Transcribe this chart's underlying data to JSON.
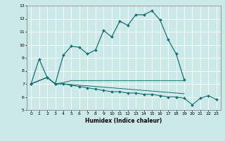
{
  "title": "",
  "xlabel": "Humidex (Indice chaleur)",
  "background_color": "#cce9e9",
  "grid_color": "#ffffff",
  "line_color": "#1a7070",
  "xlim": [
    -0.5,
    23.5
  ],
  "ylim": [
    5,
    13
  ],
  "xticks": [
    0,
    1,
    2,
    3,
    4,
    5,
    6,
    7,
    8,
    9,
    10,
    11,
    12,
    13,
    14,
    15,
    16,
    17,
    18,
    19,
    20,
    21,
    22,
    23
  ],
  "yticks": [
    5,
    6,
    7,
    8,
    9,
    10,
    11,
    12,
    13
  ],
  "line1_x": [
    0,
    1,
    2,
    3,
    4,
    5,
    6,
    7,
    8,
    9,
    10,
    11,
    12,
    13,
    14,
    15,
    16,
    17,
    18,
    19
  ],
  "line1_y": [
    7.0,
    8.9,
    7.5,
    7.0,
    9.2,
    9.9,
    9.8,
    9.3,
    9.6,
    11.1,
    10.6,
    11.8,
    11.5,
    12.3,
    12.3,
    12.6,
    11.9,
    10.4,
    9.3,
    7.3
  ],
  "line2_x": [
    0,
    2,
    3,
    4,
    5,
    6,
    7,
    8,
    9,
    10,
    11,
    12,
    13,
    14,
    15,
    16,
    17,
    18,
    19,
    20,
    21,
    22,
    23
  ],
  "line2_y": [
    7.0,
    7.5,
    7.0,
    7.0,
    6.9,
    6.8,
    6.7,
    6.6,
    6.5,
    6.4,
    6.4,
    6.3,
    6.3,
    6.2,
    6.2,
    6.1,
    6.0,
    6.0,
    5.9,
    5.4,
    5.9,
    6.1,
    5.8
  ],
  "line3_x": [
    0,
    2,
    3,
    4,
    5,
    6,
    7,
    8,
    9,
    10,
    11,
    12,
    13,
    14,
    15,
    16,
    17,
    18,
    19
  ],
  "line3_y": [
    7.0,
    7.5,
    7.0,
    7.1,
    7.25,
    7.25,
    7.25,
    7.25,
    7.25,
    7.25,
    7.25,
    7.25,
    7.25,
    7.25,
    7.25,
    7.25,
    7.25,
    7.25,
    7.25
  ],
  "line4_x": [
    0,
    2,
    3,
    4,
    5,
    6,
    7,
    8,
    9,
    10,
    11,
    12,
    13,
    14,
    15,
    16,
    17,
    18,
    19
  ],
  "line4_y": [
    7.0,
    7.5,
    7.0,
    7.0,
    6.95,
    6.9,
    6.85,
    6.8,
    6.75,
    6.7,
    6.65,
    6.6,
    6.55,
    6.5,
    6.45,
    6.4,
    6.35,
    6.3,
    6.25
  ]
}
